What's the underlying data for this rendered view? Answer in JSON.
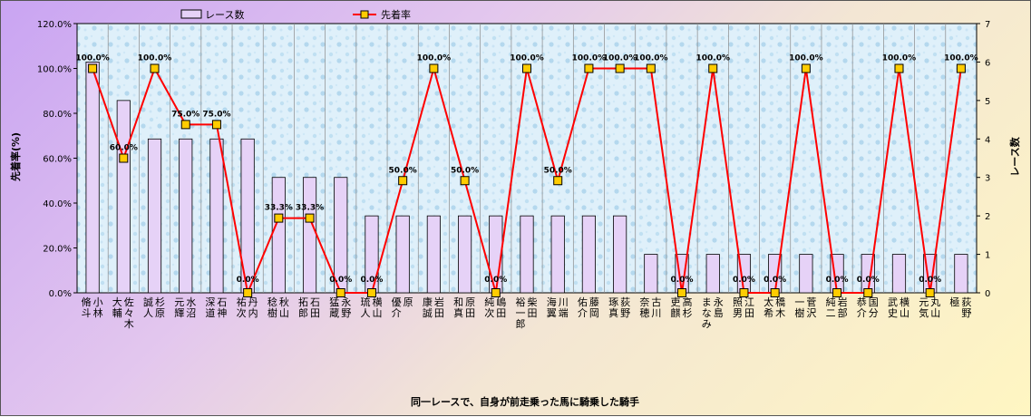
{
  "chart_data": {
    "type": "bar+line",
    "title": "",
    "xlabel": "同一レースで、自身が前走乗った馬に騎乗した騎手",
    "ylabel_left": "先着率(%)",
    "ylabel_right": "レース数",
    "ylim_left": [
      0,
      120
    ],
    "ylim_right": [
      0,
      7
    ],
    "yticks_left": [
      "0.0%",
      "20.0%",
      "40.0%",
      "60.0%",
      "80.0%",
      "100.0%",
      "120.0%"
    ],
    "yticks_right": [
      "0",
      "1",
      "2",
      "3",
      "4",
      "5",
      "6",
      "7"
    ],
    "legend_position": "top",
    "categories": [
      "小林 脩斗",
      "佐々木 大輔",
      "杉原 誠人",
      "水沼 元輝",
      "石神 深道",
      "丹内 祐次",
      "秋山 稔樹",
      "石田 拓郎",
      "永野 猛蔵",
      "横山 琉人",
      "原 優介",
      "岩田 康誠",
      "原田 和真",
      "嶋田 純次",
      "柴田 裕一郎",
      "川端 海翼",
      "藤岡 佑介",
      "荻野 琢真",
      "古川 奈穂",
      "高杉 吏麒",
      "永島 まなみ",
      "江田 照男",
      "橋木 太希",
      "菅沢 一樹",
      "岩部 純二",
      "国分 恭介",
      "横山 武史",
      "丸山 元気",
      "荻野 極"
    ],
    "series": [
      {
        "name": "レース数",
        "type": "bar",
        "axis": "right",
        "color": "#e6d2f7",
        "values": [
          6,
          5,
          4,
          4,
          4,
          4,
          3,
          3,
          3,
          2,
          2,
          2,
          2,
          2,
          2,
          2,
          2,
          2,
          1,
          1,
          1,
          1,
          1,
          1,
          1,
          1,
          1,
          1,
          1
        ]
      },
      {
        "name": "先着率",
        "type": "line",
        "axis": "left",
        "color": "#ff0000",
        "marker_color": "#ffcc00",
        "values": [
          100,
          60,
          100,
          75,
          75,
          0,
          33.3,
          33.3,
          0,
          0,
          50,
          100,
          50,
          0,
          100,
          50,
          100,
          100,
          100,
          0,
          100,
          0,
          0,
          100,
          0,
          0,
          100,
          0,
          100
        ],
        "labels": [
          "100.0%",
          "60.0%",
          "100.0%",
          "75.0%",
          "75.0%",
          "0.0%",
          "33.3%",
          "33.3%",
          "0.0%",
          "0.0%",
          "50.0%",
          "100.0%",
          "50.0%",
          "0.0%",
          "100.0%",
          "50.0%",
          "100.0%",
          "100.0%",
          "100.0%",
          "0.0%",
          "100.0%",
          "0.0%",
          "0.0%",
          "100.0%",
          "0.0%",
          "0.0%",
          "100.0%",
          "0.0%",
          "100.0%"
        ]
      }
    ]
  },
  "style": {
    "plot_bg_light": "#e8f4fb",
    "plot_bg_dark": "#b9dcf0",
    "grid_color": "#888888",
    "bar_edge": "#000000"
  }
}
